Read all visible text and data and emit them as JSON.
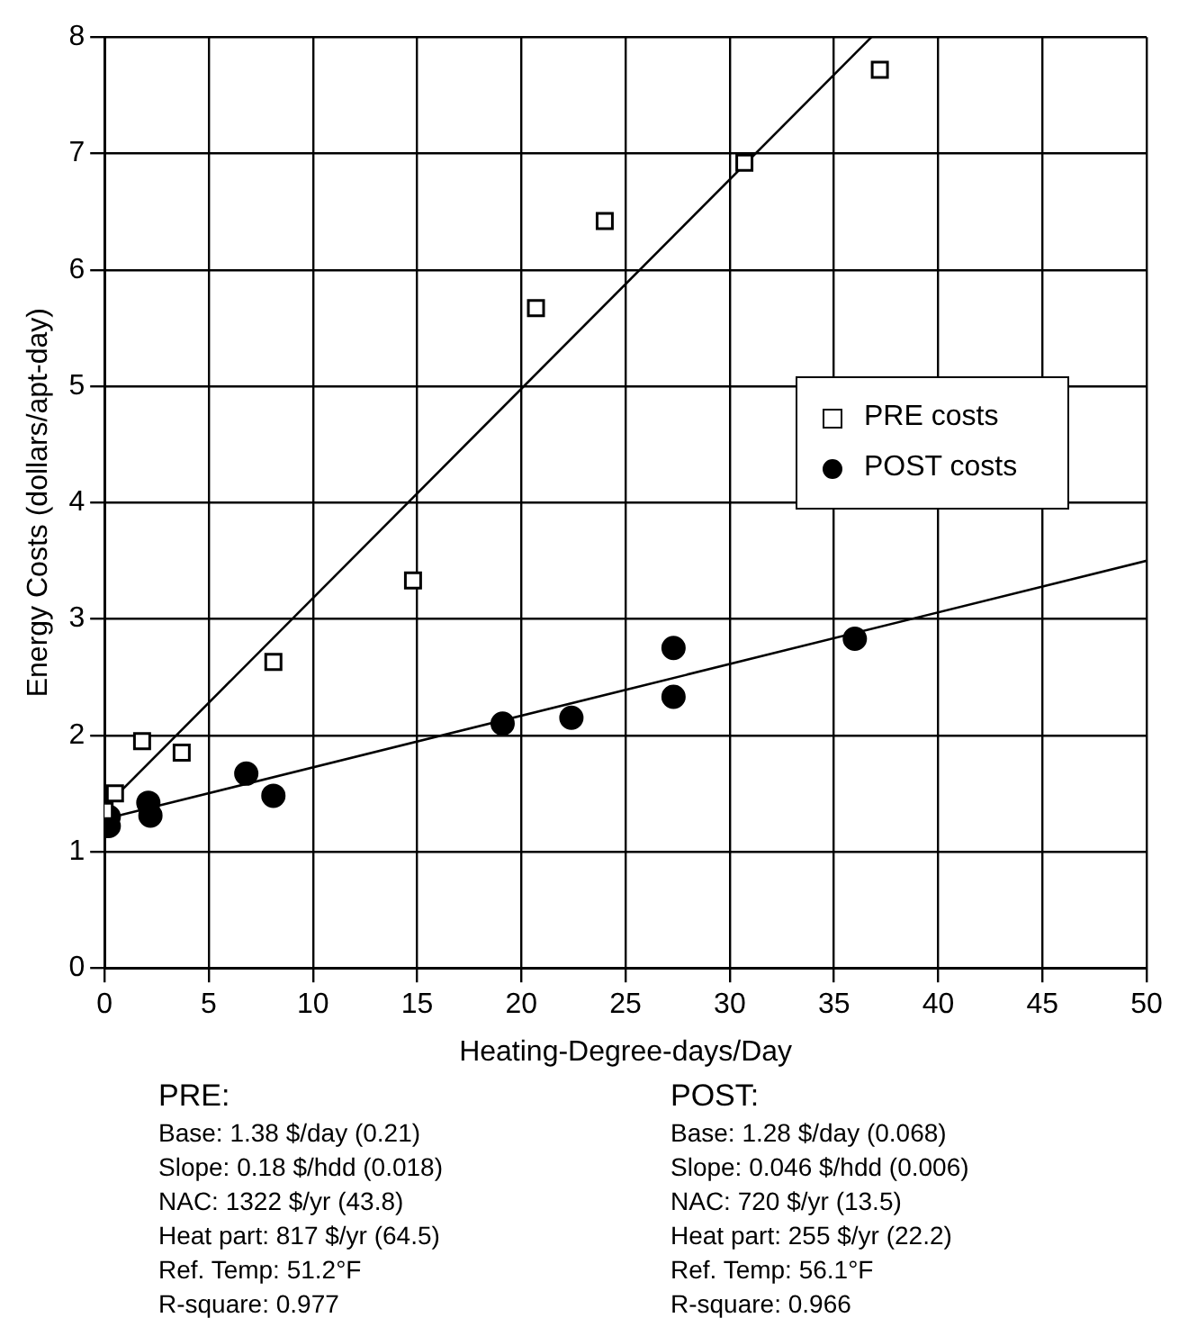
{
  "chart_data": {
    "type": "scatter",
    "xlabel": "Heating-Degree-days/Day",
    "ylabel": "Energy Costs (dollars/apt-day)",
    "xlim": [
      0,
      50
    ],
    "xticks": [
      0,
      5,
      10,
      15,
      20,
      25,
      30,
      35,
      40,
      45,
      50
    ],
    "ylim": [
      0,
      8
    ],
    "yticks": [
      0,
      1,
      2,
      3,
      4,
      5,
      6,
      7,
      8
    ],
    "grid": true,
    "legend": "right",
    "series": [
      {
        "name": "PRE costs",
        "color": "#000000",
        "marker": "square",
        "x": [
          0,
          0.5,
          1.8,
          3.7,
          8.1,
          14.8,
          20.7,
          24,
          30.7,
          37.2
        ],
        "values": [
          1.35,
          1.5,
          1.95,
          1.85,
          2.63,
          3.33,
          5.67,
          6.42,
          6.92,
          7.72
        ]
      },
      {
        "name": "POST costs",
        "color": "#000000",
        "marker": "circle",
        "x": [
          0.2,
          0.2,
          2.1,
          2.2,
          6.8,
          8.1,
          19.1,
          22.4,
          27.3,
          27.3,
          36
        ],
        "values": [
          1.22,
          1.3,
          1.42,
          1.31,
          1.67,
          1.48,
          2.1,
          2.15,
          2.75,
          2.33,
          2.83
        ]
      },
      {
        "type": "line",
        "color": "#000000",
        "marker": "none",
        "x": [
          0,
          36.8
        ],
        "values": [
          1.38,
          8
        ]
      },
      {
        "type": "line",
        "color": "#000000",
        "marker": "none",
        "x": [
          0,
          50
        ],
        "values": [
          1.28,
          3.5
        ]
      }
    ],
    "annotations": [
      "PRE:",
      "Base: 1.38 $/day (0.21)",
      "Slope: 0.18 $/hdd (0.018)",
      "NAC: 1322 $/yr (43.8)",
      "Heat part: 817 $/yr (64.5)",
      "Ref. Temp: 51.2°F",
      "R-square: 0.977",
      "POST:",
      "Base: 1.28 $/day (0.068)",
      "Slope: 0.046 $/hdd (0.006)",
      "NAC: 720 $/yr (13.5)",
      "Heat part: 255 $/yr (22.2)",
      "Ref. Temp: 56.1°F",
      "R-square: 0.966"
    ]
  }
}
